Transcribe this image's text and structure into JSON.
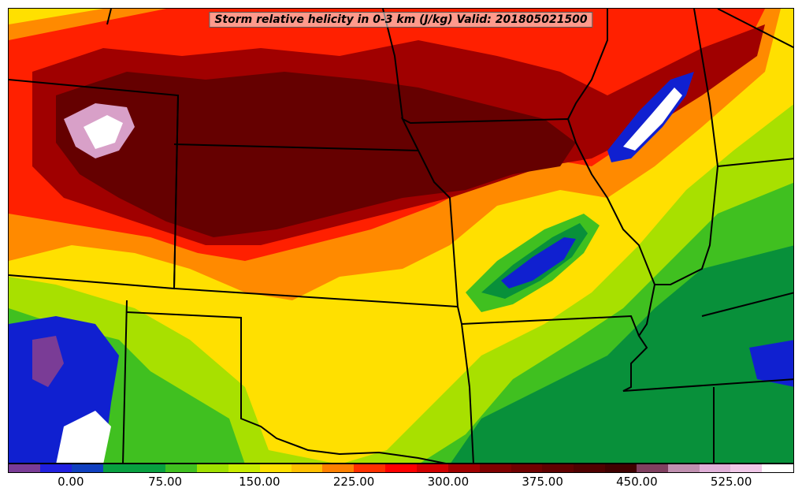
{
  "title": "Storm relative helicity in 0-3 km (J/kg) Valid: 201805021500",
  "colorbar": {
    "colors": [
      "#7a3c96",
      "#2020e0",
      "#1040c0",
      "#08a040",
      "#08a040",
      "#40c020",
      "#a0e000",
      "#c8ec00",
      "#ffe000",
      "#ffc000",
      "#ff8000",
      "#ff3000",
      "#ff0000",
      "#d00000",
      "#a00000",
      "#800000",
      "#700000",
      "#600000",
      "#500000",
      "#400000",
      "#804060",
      "#c090b0",
      "#e0b0d8",
      "#f0c8e8",
      "#ffffff"
    ],
    "tick_labels": [
      "0.00",
      "75.00",
      "150.00",
      "225.00",
      "300.00",
      "375.00",
      "450.00",
      "525.00"
    ]
  },
  "palette": {
    "green_dark": "#08903a",
    "green": "#40c020",
    "yellowgreen": "#a8e000",
    "yellow": "#ffe000",
    "orange": "#ff8a00",
    "red": "#ff2000",
    "darkred": "#a00000",
    "maroon": "#650000",
    "blue": "#1020d0",
    "purple": "#7a3c96",
    "pink": "#d8a0c8",
    "white": "#ffffff"
  }
}
